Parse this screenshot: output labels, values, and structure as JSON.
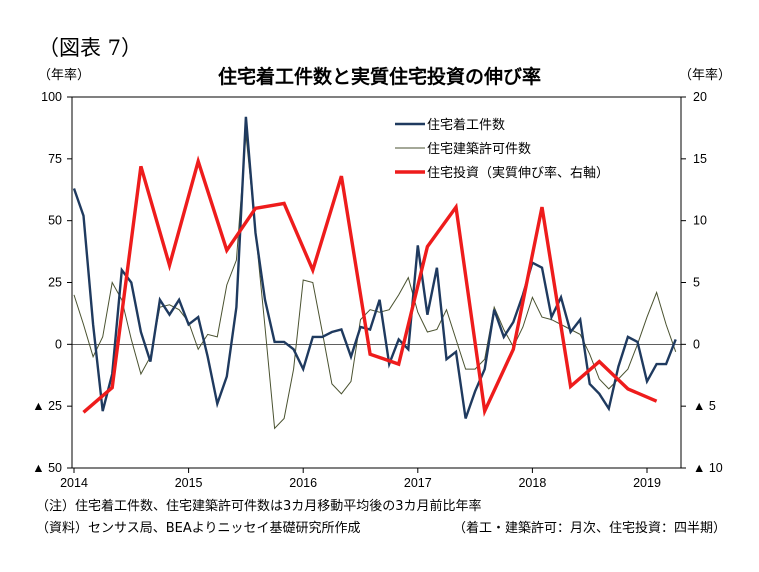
{
  "figure_label": "（図表 7）",
  "title": "住宅着工件数と実質住宅投資の伸び率",
  "left_unit": "（年率）",
  "right_unit": "（年率）",
  "footnote": "（注）住宅着工件数、住宅建築許可件数は3カ月移動平均後の3カ月前比年率",
  "source": "（資料）センサス局、BEAよりニッセイ基礎研究所作成",
  "frequency_note": "（着工・建築許可：月次、住宅投資：四半期）",
  "colors": {
    "starts": "#1f3a5f",
    "permits": "#4a5230",
    "investment": "#ee1c1c"
  },
  "chart_data": {
    "type": "line",
    "title": "住宅着工件数と実質住宅投資の伸び率",
    "left_axis": {
      "label": "（年率）",
      "min": -50,
      "max": 100,
      "ticks": [
        {
          "value": 100,
          "label": "100"
        },
        {
          "value": 75,
          "label": "75"
        },
        {
          "value": 50,
          "label": "50"
        },
        {
          "value": 25,
          "label": "25"
        },
        {
          "value": 0,
          "label": "0"
        },
        {
          "value": -25,
          "label": "▲ 25"
        },
        {
          "value": -50,
          "label": "▲ 50"
        }
      ]
    },
    "right_axis": {
      "label": "（年率）",
      "min": -10,
      "max": 20,
      "ticks": [
        {
          "value": 20,
          "label": "20"
        },
        {
          "value": 15,
          "label": "15"
        },
        {
          "value": 10,
          "label": "10"
        },
        {
          "value": 5,
          "label": "5"
        },
        {
          "value": 0,
          "label": "0"
        },
        {
          "value": -5,
          "label": "▲ 5"
        },
        {
          "value": -10,
          "label": "▲ 10"
        }
      ]
    },
    "x_axis": {
      "start_year": 2014,
      "start_month": 1,
      "months": 63,
      "year_labels": [
        "2014",
        "2015",
        "2016",
        "2017",
        "2018",
        "2019"
      ]
    },
    "grid": false,
    "legend_position": "top-right",
    "series": [
      {
        "name": "住宅着工件数",
        "axis": "left",
        "frequency": "monthly",
        "values": [
          63,
          52,
          8,
          -27,
          -12,
          30,
          25,
          5,
          -7,
          18,
          12,
          18,
          8,
          11,
          -5,
          -24,
          -13,
          15,
          92,
          45,
          18,
          1,
          1,
          -2,
          -10,
          3,
          3,
          5,
          6,
          -5,
          7,
          6,
          18,
          -8,
          2,
          -2,
          40,
          12,
          31,
          -6,
          -3,
          -30,
          -19,
          -10,
          14,
          3,
          9,
          20,
          33,
          31,
          11,
          19,
          5,
          10,
          -16,
          -20,
          -26,
          -9,
          3,
          1,
          -15,
          -8,
          -8,
          2
        ]
      },
      {
        "name": "住宅建築許可件数",
        "axis": "left",
        "frequency": "monthly",
        "values": [
          20,
          8,
          -5,
          3,
          25,
          18,
          2,
          -12,
          -5,
          15,
          16,
          14,
          9,
          -2,
          4,
          3,
          24,
          34,
          85,
          46,
          7,
          -34,
          -30,
          -10,
          26,
          25,
          5,
          -16,
          -20,
          -15,
          10,
          14,
          13,
          14,
          20,
          27,
          13,
          5,
          6,
          14,
          2,
          -10,
          -10,
          -6,
          15,
          6,
          -1,
          7,
          19,
          11,
          10,
          8,
          6,
          4,
          -4,
          -14,
          -18,
          -14,
          -10,
          0,
          11,
          21,
          8,
          -3
        ]
      },
      {
        "name": "住宅投資（実質伸び率、右軸）",
        "axis": "right",
        "frequency": "quarterly",
        "values": [
          -5.5,
          -3.5,
          14.4,
          6.4,
          14.8,
          7.6,
          11.0,
          11.4,
          6.0,
          13.6,
          -0.8,
          -1.6,
          7.9,
          11.1,
          -5.4,
          -0.4,
          11.1,
          -3.4,
          -1.4,
          -3.6,
          -4.6
        ]
      }
    ]
  }
}
